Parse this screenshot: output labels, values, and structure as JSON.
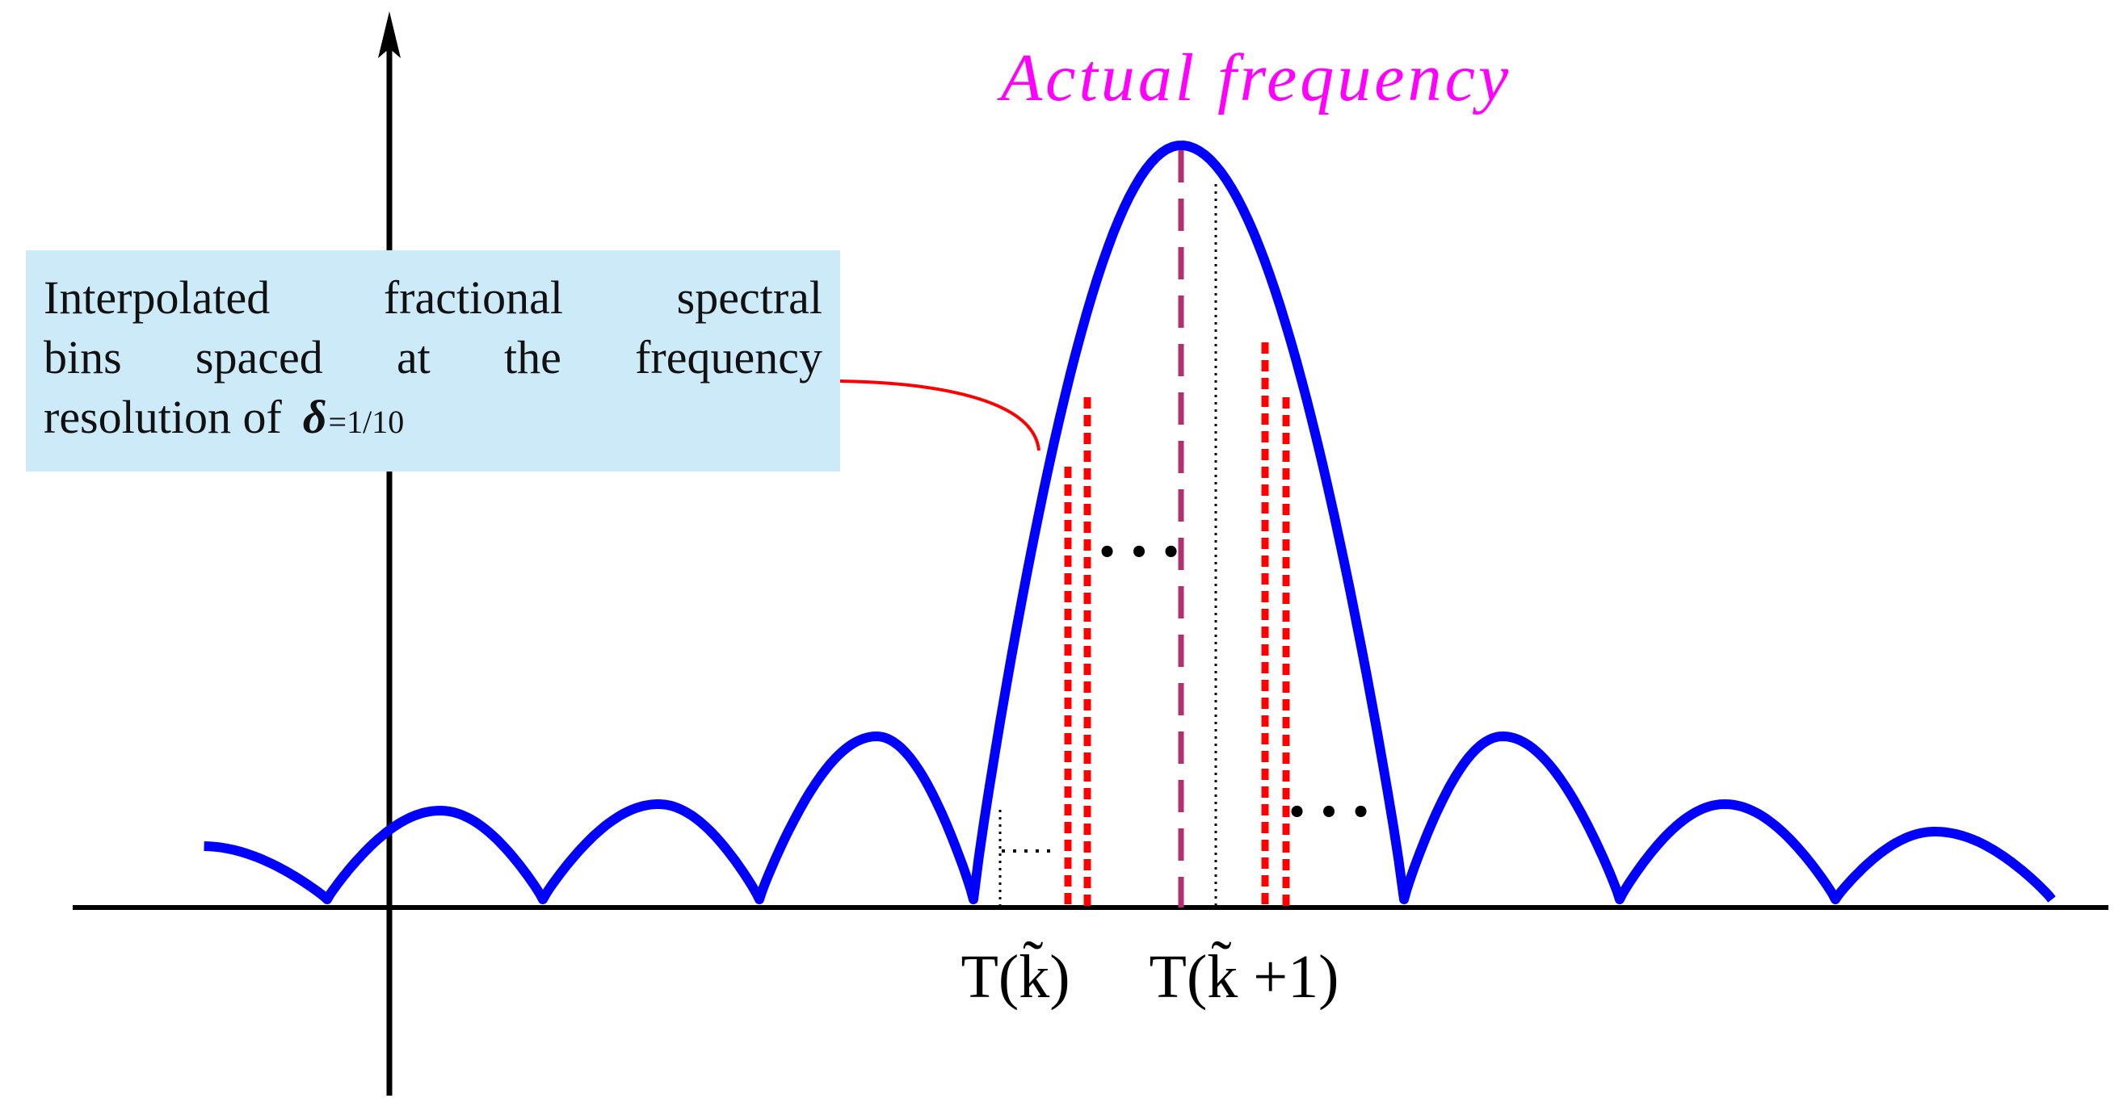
{
  "title": "Actual frequency",
  "callout": {
    "line1": [
      "Interpolated",
      "fractional",
      "spectral"
    ],
    "line2": [
      "bins",
      "spaced",
      "at",
      "the",
      "frequency"
    ],
    "line3_text": "resolution of",
    "line3_symbol": "δ",
    "line3_value": "=1/10"
  },
  "axis_labels": {
    "bin_k": "T(k̃)",
    "bin_k1": "T(k̃ +1)"
  },
  "ellipsis": "• • •",
  "colors": {
    "curve": "#0000ff",
    "axis": "#000000",
    "title": "#ff00ff",
    "actual_frequency_line": "#b03070",
    "interpolated_bins": "#ff0000",
    "callout_fill": "#cdeaf9",
    "leader_line": "#ff0000"
  }
}
